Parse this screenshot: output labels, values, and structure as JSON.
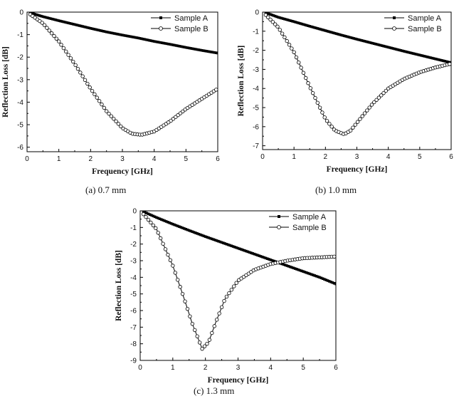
{
  "chart_data": [
    {
      "type": "scatter",
      "caption": "(a)  0.7  mm",
      "xlabel": "Frequency [GHz]",
      "ylabel": "Reflection Loss [dB]",
      "xlim": [
        0,
        6
      ],
      "ylim": [
        -6.2,
        0
      ],
      "xticks": [
        0,
        1,
        2,
        3,
        4,
        5,
        6
      ],
      "yticks": [
        0,
        -1,
        -2,
        -3,
        -4,
        -5,
        -6
      ],
      "grid": false,
      "legend": "top-right",
      "series": [
        {
          "name": "Sample A",
          "marker": "filled-square",
          "x": [
            0.1,
            0.5,
            1,
            1.5,
            2,
            2.5,
            3,
            3.5,
            4,
            4.5,
            5,
            5.5,
            6
          ],
          "y": [
            -0.03,
            -0.2,
            -0.38,
            -0.55,
            -0.72,
            -0.88,
            -1.02,
            -1.15,
            -1.3,
            -1.43,
            -1.57,
            -1.7,
            -1.82
          ]
        },
        {
          "name": "Sample B",
          "marker": "open-circle",
          "x": [
            0.1,
            0.5,
            1,
            1.5,
            2,
            2.5,
            3,
            3.3,
            3.6,
            4,
            4.5,
            5,
            5.5,
            6
          ],
          "y": [
            -0.1,
            -0.5,
            -1.3,
            -2.3,
            -3.4,
            -4.4,
            -5.15,
            -5.4,
            -5.45,
            -5.3,
            -4.85,
            -4.3,
            -3.85,
            -3.4
          ]
        }
      ]
    },
    {
      "type": "scatter",
      "caption": "(b)  1.0  mm",
      "xlabel": "Frequency [GHz]",
      "ylabel": "Reflection Loss [dB]",
      "xlim": [
        0,
        6
      ],
      "ylim": [
        -7.2,
        0
      ],
      "xticks": [
        0,
        1,
        2,
        3,
        4,
        5,
        6
      ],
      "yticks": [
        0,
        -1,
        -2,
        -3,
        -4,
        -5,
        -6,
        -7
      ],
      "grid": false,
      "legend": "top-right",
      "series": [
        {
          "name": "Sample A",
          "marker": "filled-square",
          "x": [
            0.1,
            0.5,
            1,
            1.5,
            2,
            2.5,
            3,
            3.5,
            4,
            4.5,
            5,
            5.5,
            6
          ],
          "y": [
            -0.03,
            -0.27,
            -0.5,
            -0.74,
            -0.97,
            -1.2,
            -1.42,
            -1.63,
            -1.84,
            -2.05,
            -2.25,
            -2.45,
            -2.65
          ]
        },
        {
          "name": "Sample B",
          "marker": "open-circle",
          "x": [
            0.1,
            0.5,
            1,
            1.5,
            2,
            2.3,
            2.6,
            2.8,
            3,
            3.5,
            4,
            4.5,
            5,
            5.5,
            6
          ],
          "y": [
            -0.15,
            -0.8,
            -2.1,
            -3.9,
            -5.6,
            -6.2,
            -6.4,
            -6.2,
            -5.8,
            -4.8,
            -4.0,
            -3.5,
            -3.15,
            -2.9,
            -2.7
          ]
        }
      ]
    },
    {
      "type": "scatter",
      "caption": "(c)  1.3  mm",
      "xlabel": "Frequency [GHz]",
      "ylabel": "Reflection Loss [dB]",
      "xlim": [
        0,
        6
      ],
      "ylim": [
        -9,
        0
      ],
      "xticks": [
        0,
        1,
        2,
        3,
        4,
        5,
        6
      ],
      "yticks": [
        0,
        -1,
        -2,
        -3,
        -4,
        -5,
        -6,
        -7,
        -8,
        -9
      ],
      "grid": false,
      "legend": "top-right",
      "series": [
        {
          "name": "Sample A",
          "marker": "filled-square",
          "x": [
            0.1,
            0.5,
            1,
            1.5,
            2,
            2.5,
            3,
            3.5,
            4,
            4.5,
            5,
            5.5,
            6
          ],
          "y": [
            -0.05,
            -0.4,
            -0.8,
            -1.18,
            -1.55,
            -1.9,
            -2.25,
            -2.6,
            -2.95,
            -3.3,
            -3.65,
            -4.0,
            -4.4
          ]
        },
        {
          "name": "Sample B",
          "marker": "open-circle",
          "x": [
            0.1,
            0.5,
            1,
            1.3,
            1.6,
            1.9,
            2.1,
            2.3,
            2.6,
            3,
            3.5,
            4,
            4.5,
            5,
            5.5,
            6
          ],
          "y": [
            -0.2,
            -1.1,
            -3.3,
            -5.0,
            -6.8,
            -8.3,
            -7.9,
            -6.8,
            -5.3,
            -4.2,
            -3.55,
            -3.2,
            -3.0,
            -2.85,
            -2.8,
            -2.75
          ]
        }
      ]
    }
  ]
}
